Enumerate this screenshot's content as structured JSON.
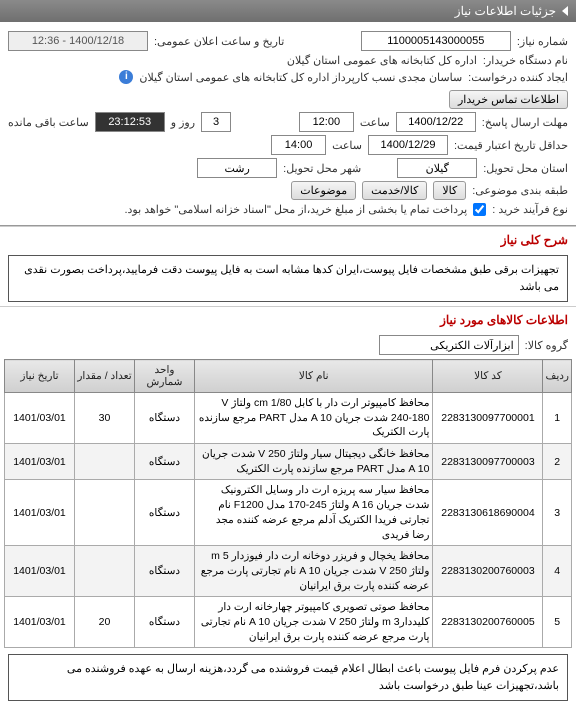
{
  "header": {
    "title": "جزئیات اطلاعات نیاز"
  },
  "form": {
    "need_no_label": "شماره نیاز:",
    "need_no": "1100005143000055",
    "announce_label": "تاریخ و ساعت اعلان عمومی:",
    "announce_val": "1400/12/18 - 12:36",
    "buyer_label": "نام دستگاه خریدار:",
    "buyer_val": "اداره کل کتابخانه های عمومی استان گیلان",
    "requester_label": "ایجاد کننده درخواست:",
    "requester_val": "ساسان مجدی نسب کارپرداز اداره کل کتابخانه های عمومی استان گیلان",
    "contact_btn": "اطلاعات تماس خریدار",
    "deadline_label": "مهلت ارسال پاسخ:",
    "deadline_date": "1400/12/22",
    "time_label": "ساعت",
    "deadline_time": "12:00",
    "day_label": "روز و",
    "days": "3",
    "remaining": "23:12:53",
    "remaining_label": "ساعت باقی مانده",
    "min_label": "حداقل تاریخ اعتبار قیمت:",
    "min_date": "1400/12/29",
    "min_time": "14:00",
    "province_label": "استان محل تحویل:",
    "province": "گیلان",
    "city_label": "شهر محل تحویل:",
    "city": "رشت",
    "category_label": "طبقه بندی موضوعی:",
    "goods": "کالا",
    "service": "کالا/خدمت",
    "items": "موضوعات",
    "buy_type_label": "نوع فرآیند خرید :",
    "buy_type_note": "پرداخت تمام یا بخشی از مبلغ خرید،از محل \"اسناد خزانه اسلامی\" خواهد بود."
  },
  "sections": {
    "desc_title": "شرح کلی نیاز",
    "desc_text": "تجهیزات برقی طبق مشخصات فایل پیوست،ایران کدها مشابه است به فایل پیوست دقت فرمایید،پرداخت بصورت نقدی می باشد",
    "goods_title": "اطلاعات کالاهای مورد نیاز",
    "group_label": "گروه کالا:",
    "group_val": "ابزارآلات الکتریکی"
  },
  "table": {
    "headers": [
      "ردیف",
      "کد کالا",
      "نام کالا",
      "واحد شمارش",
      "تعداد / مقدار",
      "تاریخ نیاز"
    ],
    "rows": [
      {
        "n": "1",
        "code": "2283130097700001",
        "name": "محافظ کامپیوتر ارت دار با کابل cm 1/80 ولتاژ V 240-180 شدت جریان A 10 مدل PART مرجع سازنده پارت الکتریک",
        "unit": "دستگاه",
        "qty": "30",
        "date": "1401/03/01"
      },
      {
        "n": "2",
        "code": "2283130097700003",
        "name": "محافظ خانگی دیجیتال سیار ولتاژ V 250 شدت جریان A 10 مدل PART مرجع سازنده پارت الکتریک",
        "unit": "دستگاه",
        "qty": "",
        "date": "1401/03/01"
      },
      {
        "n": "3",
        "code": "2283130618690004",
        "name": "محافظ سیار سه پریزه ارت دار وسایل الکترونیک شدت جریان A 16 ولتاژ 245-170 مدل F1200 نام تجارتی فریدا الکتریک آدلم مرجع عرضه کننده مجد رضا فریدی",
        "unit": "دستگاه",
        "qty": "",
        "date": "1401/03/01"
      },
      {
        "n": "4",
        "code": "2283130200760003",
        "name": "محافظ یخچال و فریزر دوخانه ارت دار فیوزدار 5 m ولتاژ V 250 شدت جریان A 10 نام تجارتی پارت مرجع عرضه کننده پارت برق ایرانیان",
        "unit": "دستگاه",
        "qty": "",
        "date": "1401/03/01"
      },
      {
        "n": "5",
        "code": "2283130200760005",
        "name": "محافظ صوتی تصویری کامپیوتر چهارخانه ارت دار کلیددار3 m ولتاژ V 250 شدت جریان A 10 نام تجارتی پارت مرجع عرضه کننده پارت برق ایرانیان",
        "unit": "دستگاه",
        "qty": "20",
        "date": "1401/03/01"
      }
    ]
  },
  "footer": {
    "note": "عدم پرکردن فرم فایل پیوست باعث ابطال اعلام قیمت فروشنده می گردد،هزینه ارسال به عهده فروشنده می باشد،تجهیزات عینا طبق درخواست باشد"
  }
}
